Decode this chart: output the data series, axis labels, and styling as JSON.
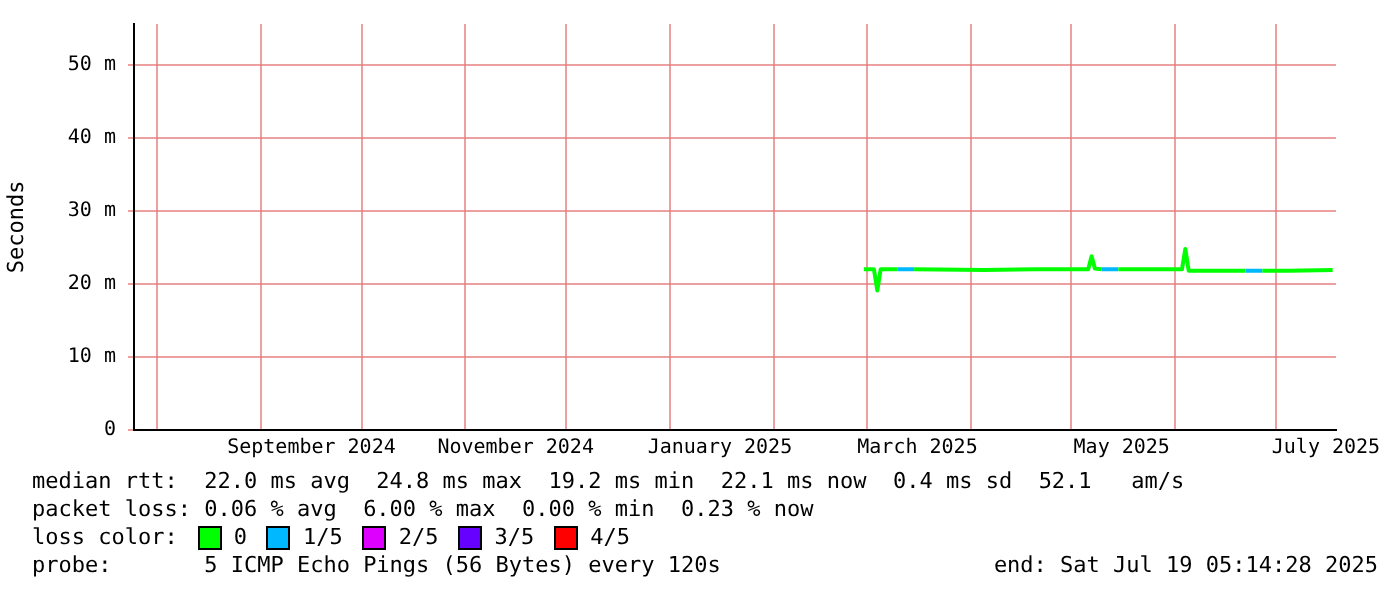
{
  "chart_data": {
    "type": "line",
    "ylabel": "Seconds",
    "legend_title": "loss color:",
    "legend": "bottom",
    "grid": true,
    "xlim": [
      "2024-07-25",
      "2025-07-19"
    ],
    "xticks": [
      {
        "value": "2024-08-01",
        "label": null
      },
      {
        "value": "2024-09-01",
        "label": null
      },
      {
        "value": "2024-09-16",
        "label": "September 2024"
      },
      {
        "value": "2024-10-01",
        "label": null
      },
      {
        "value": "2024-11-01",
        "label": null
      },
      {
        "value": "2024-11-16",
        "label": "November 2024"
      },
      {
        "value": "2024-12-01",
        "label": null
      },
      {
        "value": "2025-01-01",
        "label": null
      },
      {
        "value": "2025-01-16",
        "label": "January 2025"
      },
      {
        "value": "2025-02-01",
        "label": null
      },
      {
        "value": "2025-03-01",
        "label": null
      },
      {
        "value": "2025-03-16",
        "label": "March 2025"
      },
      {
        "value": "2025-04-01",
        "label": null
      },
      {
        "value": "2025-05-01",
        "label": null
      },
      {
        "value": "2025-05-16",
        "label": "May 2025"
      },
      {
        "value": "2025-06-01",
        "label": null
      },
      {
        "value": "2025-07-01",
        "label": null
      },
      {
        "value": "2025-07-16",
        "label": "July 2025"
      }
    ],
    "ylim": [
      0,
      55.6
    ],
    "yticks": [
      0,
      {
        "value": 10,
        "label": "10 m"
      },
      {
        "value": 20,
        "label": "20 m"
      },
      {
        "value": 30,
        "label": "30 m"
      },
      {
        "value": 40,
        "label": "40 m"
      },
      {
        "value": 50,
        "label": "50 m"
      }
    ],
    "series": [
      {
        "name": "0",
        "color": "#00ff00",
        "x": [
          "2025-02-28",
          "2025-03-03",
          "2025-03-04",
          "2025-03-05",
          "2025-03-10",
          "2025-03-12",
          "2025-03-15",
          "2025-04-05",
          "2025-04-20",
          "2025-05-06",
          "2025-05-07",
          "2025-05-08",
          "2025-05-10",
          "2025-05-12",
          "2025-05-15",
          "2025-05-20",
          "2025-06-03",
          "2025-06-04",
          "2025-06-05",
          "2025-06-20",
          "2025-06-22",
          "2025-06-24",
          "2025-06-27",
          "2025-07-05",
          "2025-07-18"
        ],
        "values": [
          22,
          22,
          19.1,
          22,
          22,
          null,
          22,
          21.9,
          22,
          22,
          23.8,
          22.1,
          22,
          null,
          22,
          22,
          22,
          24.8,
          21.8,
          21.8,
          21.8,
          null,
          21.8,
          21.8,
          21.9
        ]
      },
      {
        "name": "1/5",
        "color": "#00b8ff",
        "x": [
          "2025-03-10",
          "2025-03-15",
          "2025-03-16",
          "2025-05-10",
          "2025-05-15",
          "2025-05-16",
          "2025-06-22",
          "2025-06-27"
        ],
        "values": [
          22,
          22,
          null,
          22,
          22,
          null,
          21.8,
          21.8
        ]
      },
      {
        "name": "2/5",
        "color": "#dd00ff"
      },
      {
        "name": "3/5",
        "color": "#6600ff"
      },
      {
        "name": "4/5",
        "color": "#ff0000"
      }
    ],
    "annotations": [
      "median rtt:  22.0 ms avg  24.8 ms max  19.2 ms min  22.1 ms now  0.4 ms sd  52.1   am/s",
      "packet loss: 0.06 % avg  6.00 % max  0.00 % min  0.23 % now",
      "probe:       5 ICMP Echo Pings (56 Bytes) every 120s",
      "end: Sat Jul 19 05:14:28 2025"
    ]
  }
}
